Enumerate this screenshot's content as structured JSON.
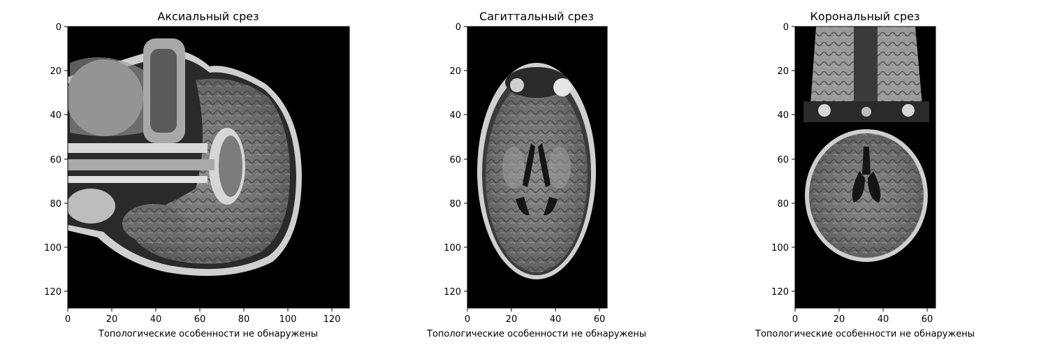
{
  "panels": [
    {
      "title": "Аксиальный срез",
      "xlabel": "Топологические особенности не обнаружены",
      "xticks": [
        "0",
        "20",
        "40",
        "60",
        "80",
        "100",
        "120"
      ],
      "yticks": [
        "0",
        "20",
        "40",
        "60",
        "80",
        "100",
        "120"
      ]
    },
    {
      "title": "Сагиттальный срез",
      "xlabel": "Топологические особенности не обнаружены",
      "xticks": [
        "0",
        "20",
        "40",
        "60"
      ],
      "yticks": [
        "0",
        "20",
        "40",
        "60",
        "80",
        "100",
        "120"
      ]
    },
    {
      "title": "Корональный срез",
      "xlabel": "Топологические особенности не обнаружены",
      "xticks": [
        "0",
        "20",
        "40",
        "60"
      ],
      "yticks": [
        "0",
        "20",
        "40",
        "60",
        "80",
        "100",
        "120"
      ]
    }
  ],
  "colors": {
    "background": "#000000",
    "tissue": "#7a7a7a",
    "bright": "#d8d8d8",
    "ventricle": "#151515"
  }
}
